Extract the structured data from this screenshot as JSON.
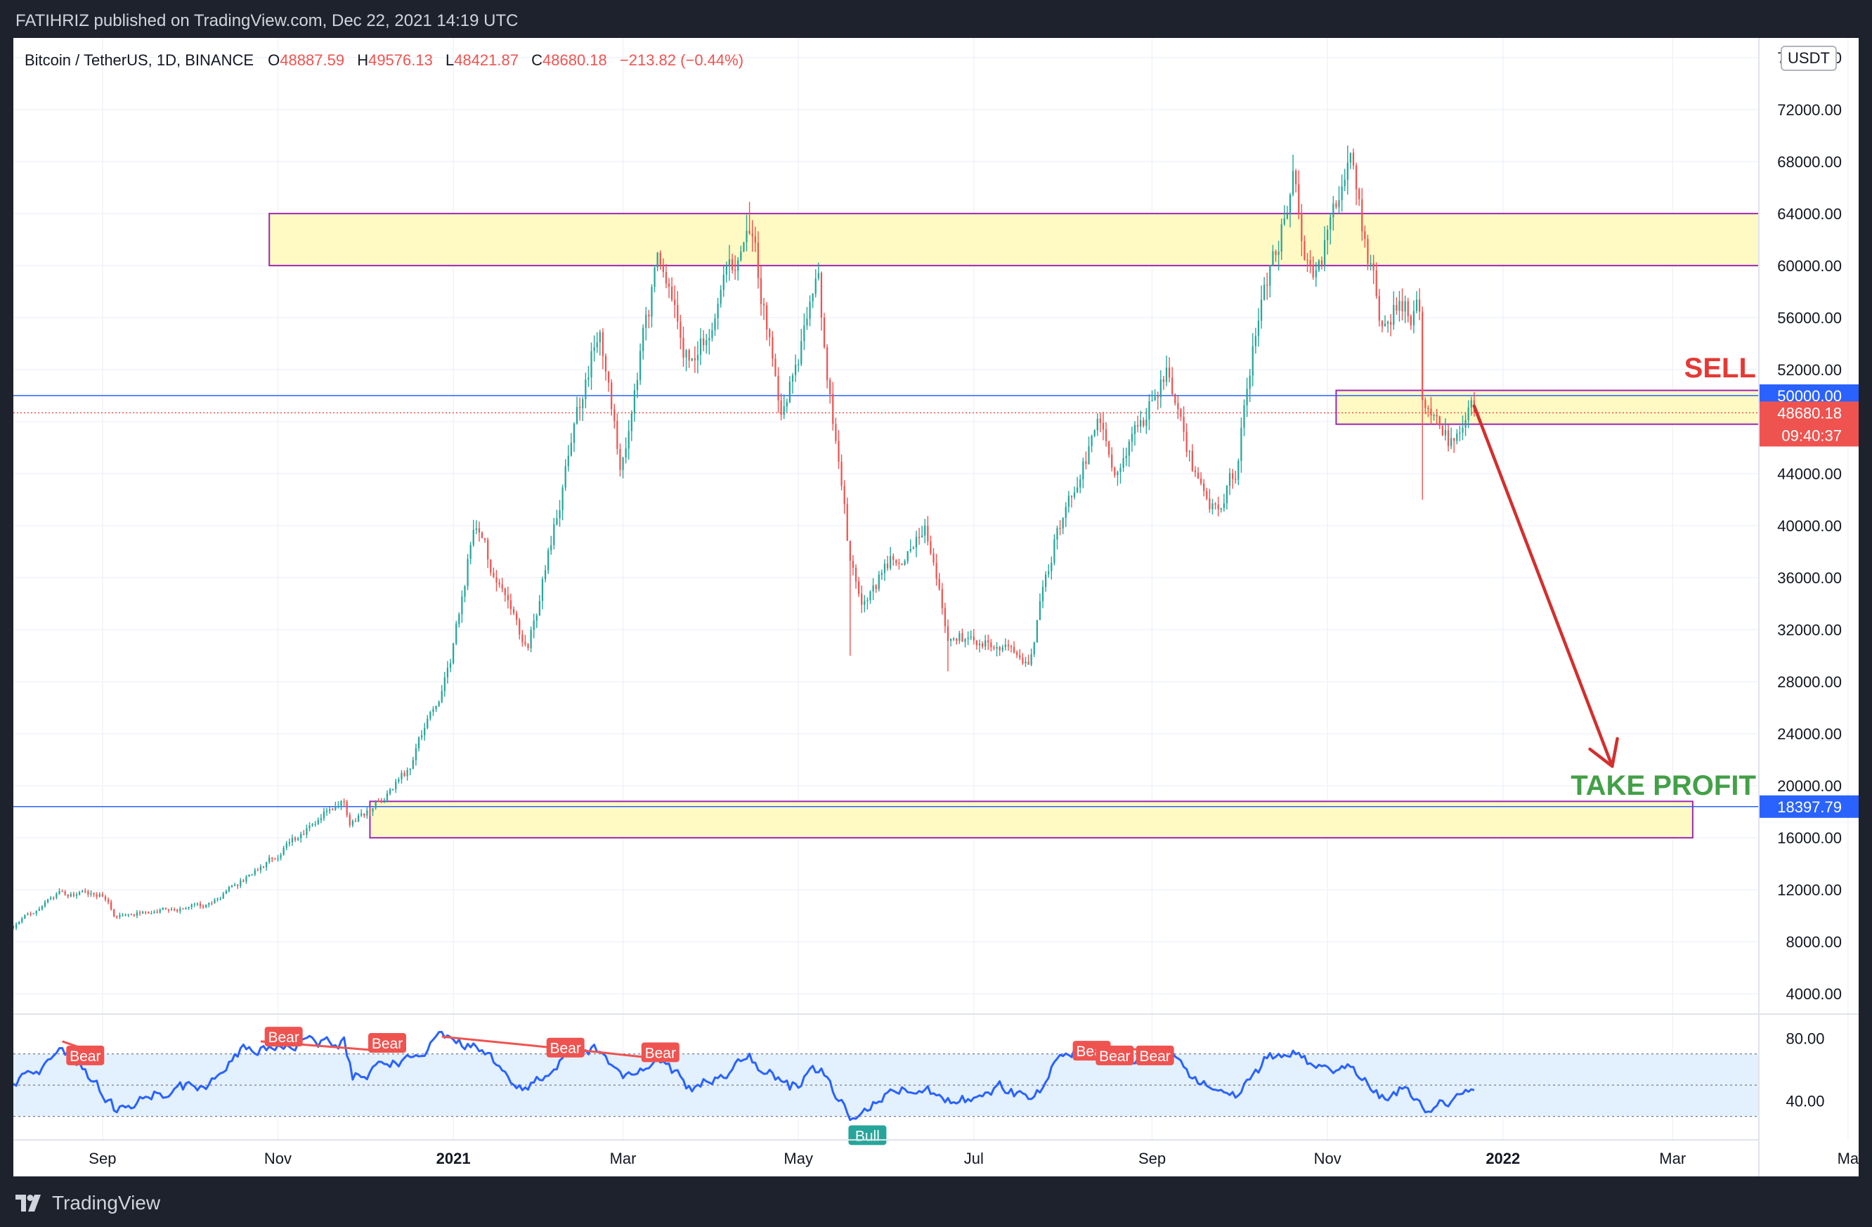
{
  "header": {
    "published": "FATIHRIZ published on TradingView.com, Dec 22, 2021 14:19 UTC"
  },
  "footer": {
    "brand": "TradingView",
    "logo_icon": "tradingview-logo-icon"
  },
  "symbol": {
    "name": "Bitcoin / TetherUS, 1D, BINANCE",
    "o_label": "O",
    "o": "48887.59",
    "h_label": "H",
    "h": "49576.13",
    "l_label": "L",
    "l": "48421.87",
    "c_label": "C",
    "c": "48680.18",
    "change": "−213.82 (−0.44%)",
    "currency": "USDT"
  },
  "colors": {
    "up": "#26a69a",
    "down": "#ef5350",
    "zone_fill": "#fff9c4",
    "zone_border": "#9c27b0",
    "level_line": "#2962ff",
    "rsi_line": "#2962ff",
    "rsi_band": "#e3f0fd",
    "arrow": "#d32f2f",
    "sell_text": "#e53935",
    "tp_text": "#43a047",
    "bull_label": "#26a69a",
    "bear_label": "#ef5350"
  },
  "chart_data": {
    "type": "candlestick",
    "x_range": [
      "2020-08-01",
      "2022-03-31"
    ],
    "y_range": [
      2500,
      77500
    ],
    "y_ticks": [
      4000,
      8000,
      12000,
      16000,
      20000,
      24000,
      28000,
      32000,
      36000,
      40000,
      44000,
      48000,
      52000,
      56000,
      60000,
      64000,
      68000,
      72000,
      76000
    ],
    "y_tick_labels": [
      "4000.00",
      "8000.00",
      "12000.00",
      "16000.00",
      "20000.00",
      "24000.00",
      "28000.00",
      "32000.00",
      "36000.00",
      "40000.00",
      "44000.00",
      "48000.00",
      "52000.00",
      "56000.00",
      "60000.00",
      "64000.00",
      "68000.00",
      "72000.00",
      "76000.00"
    ],
    "x_ticks": [
      {
        "date": "2020-09-01",
        "label": "Sep",
        "bold": false
      },
      {
        "date": "2020-11-01",
        "label": "Nov",
        "bold": false
      },
      {
        "date": "2021-01-01",
        "label": "2021",
        "bold": true
      },
      {
        "date": "2021-03-01",
        "label": "Mar",
        "bold": false
      },
      {
        "date": "2021-05-01",
        "label": "May",
        "bold": false
      },
      {
        "date": "2021-07-01",
        "label": "Jul",
        "bold": false
      },
      {
        "date": "2021-09-01",
        "label": "Sep",
        "bold": false
      },
      {
        "date": "2021-11-01",
        "label": "Nov",
        "bold": false
      },
      {
        "date": "2022-01-01",
        "label": "2022",
        "bold": true
      },
      {
        "date": "2022-03-01",
        "label": "Mar",
        "bold": false
      },
      {
        "date": "2022-05-01",
        "label": "Ma",
        "bold": false
      }
    ],
    "price_path": [
      [
        "2020-08-01",
        9200
      ],
      [
        "2020-08-17",
        11800
      ],
      [
        "2020-09-01",
        11700
      ],
      [
        "2020-09-05",
        10200
      ],
      [
        "2020-10-08",
        10800
      ],
      [
        "2020-10-21",
        12900
      ],
      [
        "2020-11-05",
        15500
      ],
      [
        "2020-11-24",
        19100
      ],
      [
        "2020-11-26",
        16800
      ],
      [
        "2020-12-16",
        21000
      ],
      [
        "2020-12-31",
        29000
      ],
      [
        "2021-01-08",
        40000
      ],
      [
        "2021-01-27",
        30500
      ],
      [
        "2021-02-21",
        56000
      ],
      [
        "2021-02-28",
        45000
      ],
      [
        "2021-03-13",
        60000
      ],
      [
        "2021-03-25",
        52000
      ],
      [
        "2021-04-14",
        63500
      ],
      [
        "2021-04-25",
        49000
      ],
      [
        "2021-05-08",
        58000
      ],
      [
        "2021-05-12",
        49500
      ],
      [
        "2021-05-19",
        37000
      ],
      [
        "2021-05-23",
        34700
      ],
      [
        "2021-06-14",
        40000
      ],
      [
        "2021-06-22",
        31800
      ],
      [
        "2021-07-20",
        29800
      ],
      [
        "2021-07-30",
        40000
      ],
      [
        "2021-08-14",
        47500
      ],
      [
        "2021-08-19",
        45000
      ],
      [
        "2021-09-06",
        51500
      ],
      [
        "2021-09-21",
        40500
      ],
      [
        "2021-09-30",
        43800
      ],
      [
        "2021-10-07",
        55000
      ],
      [
        "2021-10-20",
        66000
      ],
      [
        "2021-10-27",
        58500
      ],
      [
        "2021-11-09",
        67500
      ],
      [
        "2021-11-19",
        56000
      ],
      [
        "2021-11-27",
        57000
      ],
      [
        "2021-12-03",
        56500
      ],
      [
        "2021-12-04",
        49000
      ],
      [
        "2021-12-13",
        46700
      ],
      [
        "2021-12-22",
        48680
      ]
    ],
    "extremes": [
      {
        "date": "2021-04-14",
        "high": 64900
      },
      {
        "date": "2021-05-19",
        "low": 30000
      },
      {
        "date": "2021-06-22",
        "low": 28800
      },
      {
        "date": "2021-07-20",
        "low": 29300
      },
      {
        "date": "2021-11-10",
        "high": 69000
      },
      {
        "date": "2021-12-04",
        "low": 42000
      }
    ],
    "last_price": 48680.18,
    "last_price_label": "48680.18",
    "countdown": "09:40:37",
    "levels": [
      {
        "price": 50000,
        "label": "50000.00",
        "from": "2020-08-01"
      },
      {
        "price": 18397.79,
        "label": "18397.79",
        "from": "2020-08-01"
      }
    ],
    "zones": [
      {
        "from": "2020-10-29",
        "to": "2022-03-31",
        "low": 60000,
        "high": 64000
      },
      {
        "from": "2021-11-04",
        "to": "2022-03-31",
        "low": 47800,
        "high": 50400
      },
      {
        "from": "2020-12-03",
        "to": "2022-03-08",
        "low": 16000,
        "high": 18800
      }
    ],
    "arrow": {
      "from": [
        "2021-12-22",
        49200
      ],
      "to": [
        "2022-02-08",
        21500
      ]
    },
    "annotations": [
      {
        "text": "SELL",
        "date": "2022-03-30",
        "price": 51400,
        "kind": "sell"
      },
      {
        "text": "TAKE PROFIT",
        "date": "2022-03-30",
        "price": 19300,
        "kind": "tp"
      }
    ],
    "rsi": {
      "range": [
        15,
        95
      ],
      "ticks": [
        40,
        80
      ],
      "tick_labels": [
        "40.00",
        "80.00"
      ],
      "band": [
        30,
        70
      ],
      "midline": 50,
      "path": [
        [
          "2020-08-01",
          50
        ],
        [
          "2020-08-10",
          58
        ],
        [
          "2020-08-18",
          73
        ],
        [
          "2020-08-25",
          63
        ],
        [
          "2020-09-05",
          35
        ],
        [
          "2020-09-20",
          45
        ],
        [
          "2020-10-08",
          52
        ],
        [
          "2020-10-20",
          72
        ],
        [
          "2020-11-05",
          76
        ],
        [
          "2020-11-24",
          77
        ],
        [
          "2020-11-27",
          55
        ],
        [
          "2020-12-10",
          63
        ],
        [
          "2020-12-28",
          80
        ],
        [
          "2021-01-10",
          74
        ],
        [
          "2021-01-25",
          47
        ],
        [
          "2021-02-08",
          68
        ],
        [
          "2021-02-21",
          73
        ],
        [
          "2021-03-01",
          55
        ],
        [
          "2021-03-13",
          66
        ],
        [
          "2021-03-25",
          47
        ],
        [
          "2021-04-14",
          67
        ],
        [
          "2021-04-28",
          48
        ],
        [
          "2021-05-09",
          60
        ],
        [
          "2021-05-20",
          28
        ],
        [
          "2021-05-30",
          42
        ],
        [
          "2021-06-14",
          50
        ],
        [
          "2021-06-24",
          38
        ],
        [
          "2021-07-10",
          48
        ],
        [
          "2021-07-22",
          40
        ],
        [
          "2021-07-31",
          70
        ],
        [
          "2021-08-14",
          74
        ],
        [
          "2021-08-22",
          66
        ],
        [
          "2021-09-06",
          70
        ],
        [
          "2021-09-21",
          47
        ],
        [
          "2021-10-01",
          43
        ],
        [
          "2021-10-10",
          65
        ],
        [
          "2021-10-20",
          72
        ],
        [
          "2021-10-28",
          58
        ],
        [
          "2021-11-09",
          62
        ],
        [
          "2021-11-19",
          43
        ],
        [
          "2021-11-28",
          48
        ],
        [
          "2021-12-04",
          34
        ],
        [
          "2021-12-13",
          38
        ],
        [
          "2021-12-22",
          45
        ]
      ],
      "divergence_lines": [
        [
          [
            "2020-08-18",
            78
          ],
          [
            "2020-09-01",
            69
          ]
        ],
        [
          [
            "2020-10-26",
            78
          ],
          [
            "2020-12-07",
            72
          ]
        ],
        [
          [
            "2020-12-28",
            81
          ],
          [
            "2021-02-21",
            71
          ]
        ],
        [
          [
            "2021-02-21",
            71
          ],
          [
            "2021-03-13",
            67
          ]
        ],
        [
          [
            "2021-08-14",
            75
          ],
          [
            "2021-09-06",
            71
          ]
        ]
      ],
      "labels": [
        {
          "text": "Bear",
          "date": "2020-08-26",
          "value": 69,
          "kind": "bear"
        },
        {
          "text": "Bear",
          "date": "2020-11-03",
          "value": 81,
          "kind": "bear"
        },
        {
          "text": "Bear",
          "date": "2020-12-09",
          "value": 77,
          "kind": "bear"
        },
        {
          "text": "Bear",
          "date": "2021-02-09",
          "value": 74,
          "kind": "bear"
        },
        {
          "text": "Bear",
          "date": "2021-03-14",
          "value": 71,
          "kind": "bear"
        },
        {
          "text": "Bull",
          "date": "2021-05-25",
          "value": 18,
          "kind": "bull"
        },
        {
          "text": "Bear",
          "date": "2021-08-11",
          "value": 72,
          "kind": "bear"
        },
        {
          "text": "Bear",
          "date": "2021-08-19",
          "value": 69,
          "kind": "bear"
        },
        {
          "text": "Bear",
          "date": "2021-09-02",
          "value": 69,
          "kind": "bear"
        }
      ]
    }
  }
}
